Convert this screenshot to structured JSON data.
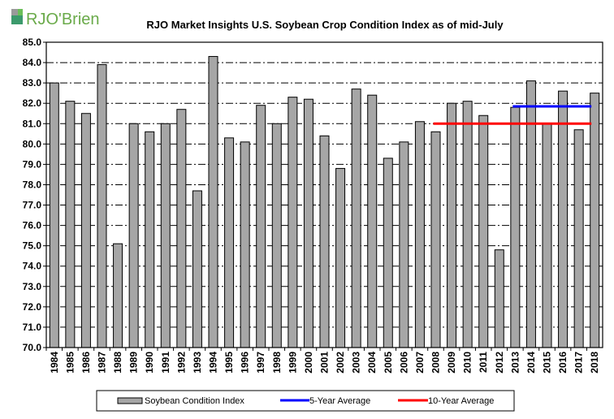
{
  "logo": {
    "text": "RJO'Brien"
  },
  "chart_data": {
    "type": "bar",
    "title": "RJO Market Insights U.S. Soybean Crop Condition Index as of mid-July",
    "xlabel": "",
    "ylabel": "",
    "ylim": [
      70,
      85
    ],
    "yticks": [
      "70.0",
      "71.0",
      "72.0",
      "73.0",
      "74.0",
      "75.0",
      "76.0",
      "77.0",
      "78.0",
      "79.0",
      "80.0",
      "81.0",
      "82.0",
      "83.0",
      "84.0",
      "85.0"
    ],
    "categories": [
      "1984",
      "1985",
      "1986",
      "1987",
      "1988",
      "1989",
      "1990",
      "1991",
      "1992",
      "1993",
      "1994",
      "1995",
      "1996",
      "1997",
      "1998",
      "1999",
      "2000",
      "2001",
      "2002",
      "2003",
      "2004",
      "2005",
      "2006",
      "2007",
      "2008",
      "2009",
      "2010",
      "2011",
      "2012",
      "2013",
      "2014",
      "2015",
      "2016",
      "2017",
      "2018"
    ],
    "series": [
      {
        "name": "Soybean Condition Index",
        "type": "bar",
        "color": "#a6a6a6",
        "values": [
          83.0,
          82.1,
          81.5,
          83.9,
          75.1,
          81.0,
          80.6,
          81.0,
          81.7,
          77.7,
          84.3,
          80.3,
          80.1,
          81.9,
          81.0,
          82.3,
          82.2,
          80.4,
          78.8,
          82.7,
          82.4,
          79.3,
          80.1,
          81.1,
          80.6,
          82.0,
          82.1,
          81.4,
          74.8,
          81.8,
          83.1,
          81.0,
          82.6,
          80.7,
          82.5
        ]
      },
      {
        "name": "5-Year Average",
        "type": "line",
        "color": "#0000ff",
        "from": "2013",
        "to": "2018",
        "value": 81.85
      },
      {
        "name": "10-Year Average",
        "type": "line",
        "color": "#ff0000",
        "from": "2008",
        "to": "2018",
        "value": 81.0
      }
    ],
    "grid": true,
    "legend": "bottom"
  }
}
